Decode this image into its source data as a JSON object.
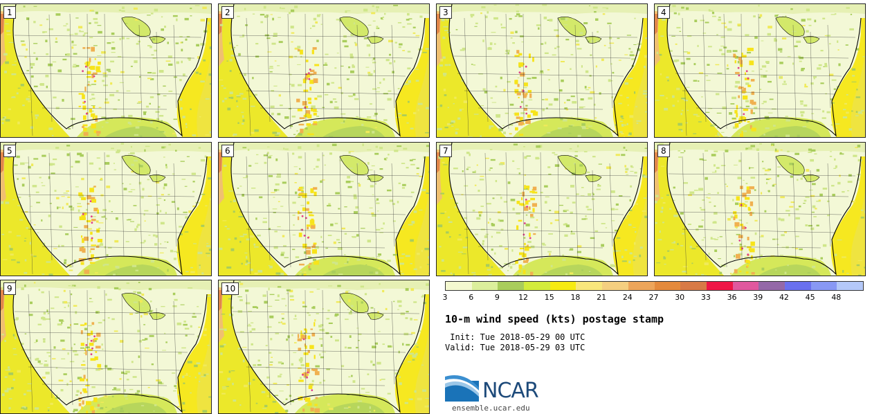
{
  "panels": [
    {
      "label": "1"
    },
    {
      "label": "2"
    },
    {
      "label": "3"
    },
    {
      "label": "4"
    },
    {
      "label": "5"
    },
    {
      "label": "6"
    },
    {
      "label": "7"
    },
    {
      "label": "8"
    },
    {
      "label": "9"
    },
    {
      "label": "10"
    }
  ],
  "legend": {
    "ticks": [
      "3",
      "6",
      "9",
      "12",
      "15",
      "18",
      "21",
      "24",
      "27",
      "30",
      "33",
      "36",
      "39",
      "42",
      "45",
      "48"
    ],
    "colors": [
      "#f4f8d0",
      "#dcef9c",
      "#a9cd5c",
      "#d3ec3c",
      "#f7eb12",
      "#f8e67c",
      "#f5cf80",
      "#eda55a",
      "#e48a3c",
      "#d87a46",
      "#ee1646",
      "#e0589e",
      "#9468a8",
      "#6a70ee",
      "#8898f4",
      "#b4c8f8"
    ]
  },
  "title": "10-m wind speed (kts) postage stamp",
  "init": " Init: Tue 2018-05-29 00 UTC",
  "valid": "Valid: Tue 2018-05-29 03 UTC",
  "logo": {
    "text": "NCAR",
    "url": "ensemble.ucar.edu"
  }
}
